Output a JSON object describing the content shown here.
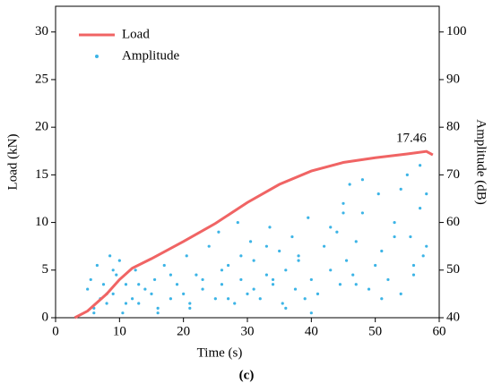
{
  "chart_data": {
    "type": "line",
    "xlabel": "Time (s)",
    "ylabel": "Load (kN)",
    "y2label": "Amplitude (dB)",
    "caption": "(c)",
    "annotation": "17.46",
    "xlim": [
      0,
      60
    ],
    "xticks": [
      0,
      10,
      20,
      30,
      40,
      50,
      60
    ],
    "ylim": [
      0,
      32.7
    ],
    "yticks": [
      0,
      5,
      10,
      15,
      20,
      25,
      30
    ],
    "y2lim": [
      40,
      105.4
    ],
    "y2ticks": [
      40,
      50,
      60,
      70,
      80,
      90,
      100
    ],
    "legend": "upper left",
    "series": [
      {
        "name": "Load",
        "color": "#f06464",
        "x": [
          3,
          5,
          8,
          10,
          12,
          15,
          20,
          25,
          30,
          35,
          40,
          45,
          50,
          55,
          58,
          59
        ],
        "values": [
          0,
          0.7,
          2.5,
          4,
          5.2,
          6.2,
          8,
          9.9,
          12.1,
          14,
          15.4,
          16.3,
          16.8,
          17.2,
          17.46,
          17.1
        ]
      },
      {
        "name": "Amplitude",
        "color": "#3cb4e6",
        "type": "scatter",
        "axis": "y2",
        "x": [
          5,
          5.5,
          6,
          6.5,
          7,
          7.5,
          8,
          8.5,
          9,
          9.5,
          10,
          10.5,
          11,
          12,
          12.5,
          13,
          14,
          15,
          15.5,
          16,
          17,
          18,
          19,
          20,
          20.5,
          21,
          22,
          23,
          24,
          25,
          25.5,
          26,
          27,
          28,
          28.5,
          29,
          30,
          30.5,
          31,
          32,
          33,
          33.5,
          34,
          35,
          35.5,
          36,
          37,
          37.5,
          38,
          39,
          39.5,
          40,
          41,
          42,
          43,
          44,
          44.5,
          45,
          45.5,
          46,
          46.5,
          47,
          48,
          49,
          50,
          50.5,
          51,
          52,
          53,
          54,
          55,
          55.5,
          56,
          57,
          57.5,
          58,
          6,
          8,
          9,
          11,
          13,
          16,
          18,
          21,
          23,
          26,
          27,
          29,
          31,
          33,
          34,
          36,
          38,
          40,
          43,
          45,
          47,
          48,
          51,
          53,
          54,
          56,
          57,
          58
        ],
        "values": [
          46,
          48,
          42,
          51,
          44,
          47,
          43,
          53,
          45,
          49,
          52,
          41,
          47,
          44,
          50,
          43,
          46,
          45,
          48,
          42,
          51,
          44,
          47,
          45,
          53,
          43,
          49,
          46,
          55,
          44,
          58,
          47,
          51,
          43,
          60,
          48,
          45,
          56,
          52,
          44,
          49,
          59,
          47,
          54,
          43,
          50,
          57,
          46,
          52,
          44,
          61,
          48,
          45,
          55,
          50,
          58,
          47,
          64,
          52,
          68,
          49,
          56,
          62,
          46,
          51,
          66,
          54,
          48,
          60,
          45,
          70,
          57,
          49,
          63,
          53,
          66,
          41,
          45,
          50,
          43,
          47,
          41,
          49,
          42,
          48,
          50,
          44,
          53,
          46,
          55,
          48,
          42,
          53,
          41,
          59,
          62,
          47,
          69,
          44,
          57,
          67,
          51,
          72,
          55
        ]
      }
    ]
  }
}
